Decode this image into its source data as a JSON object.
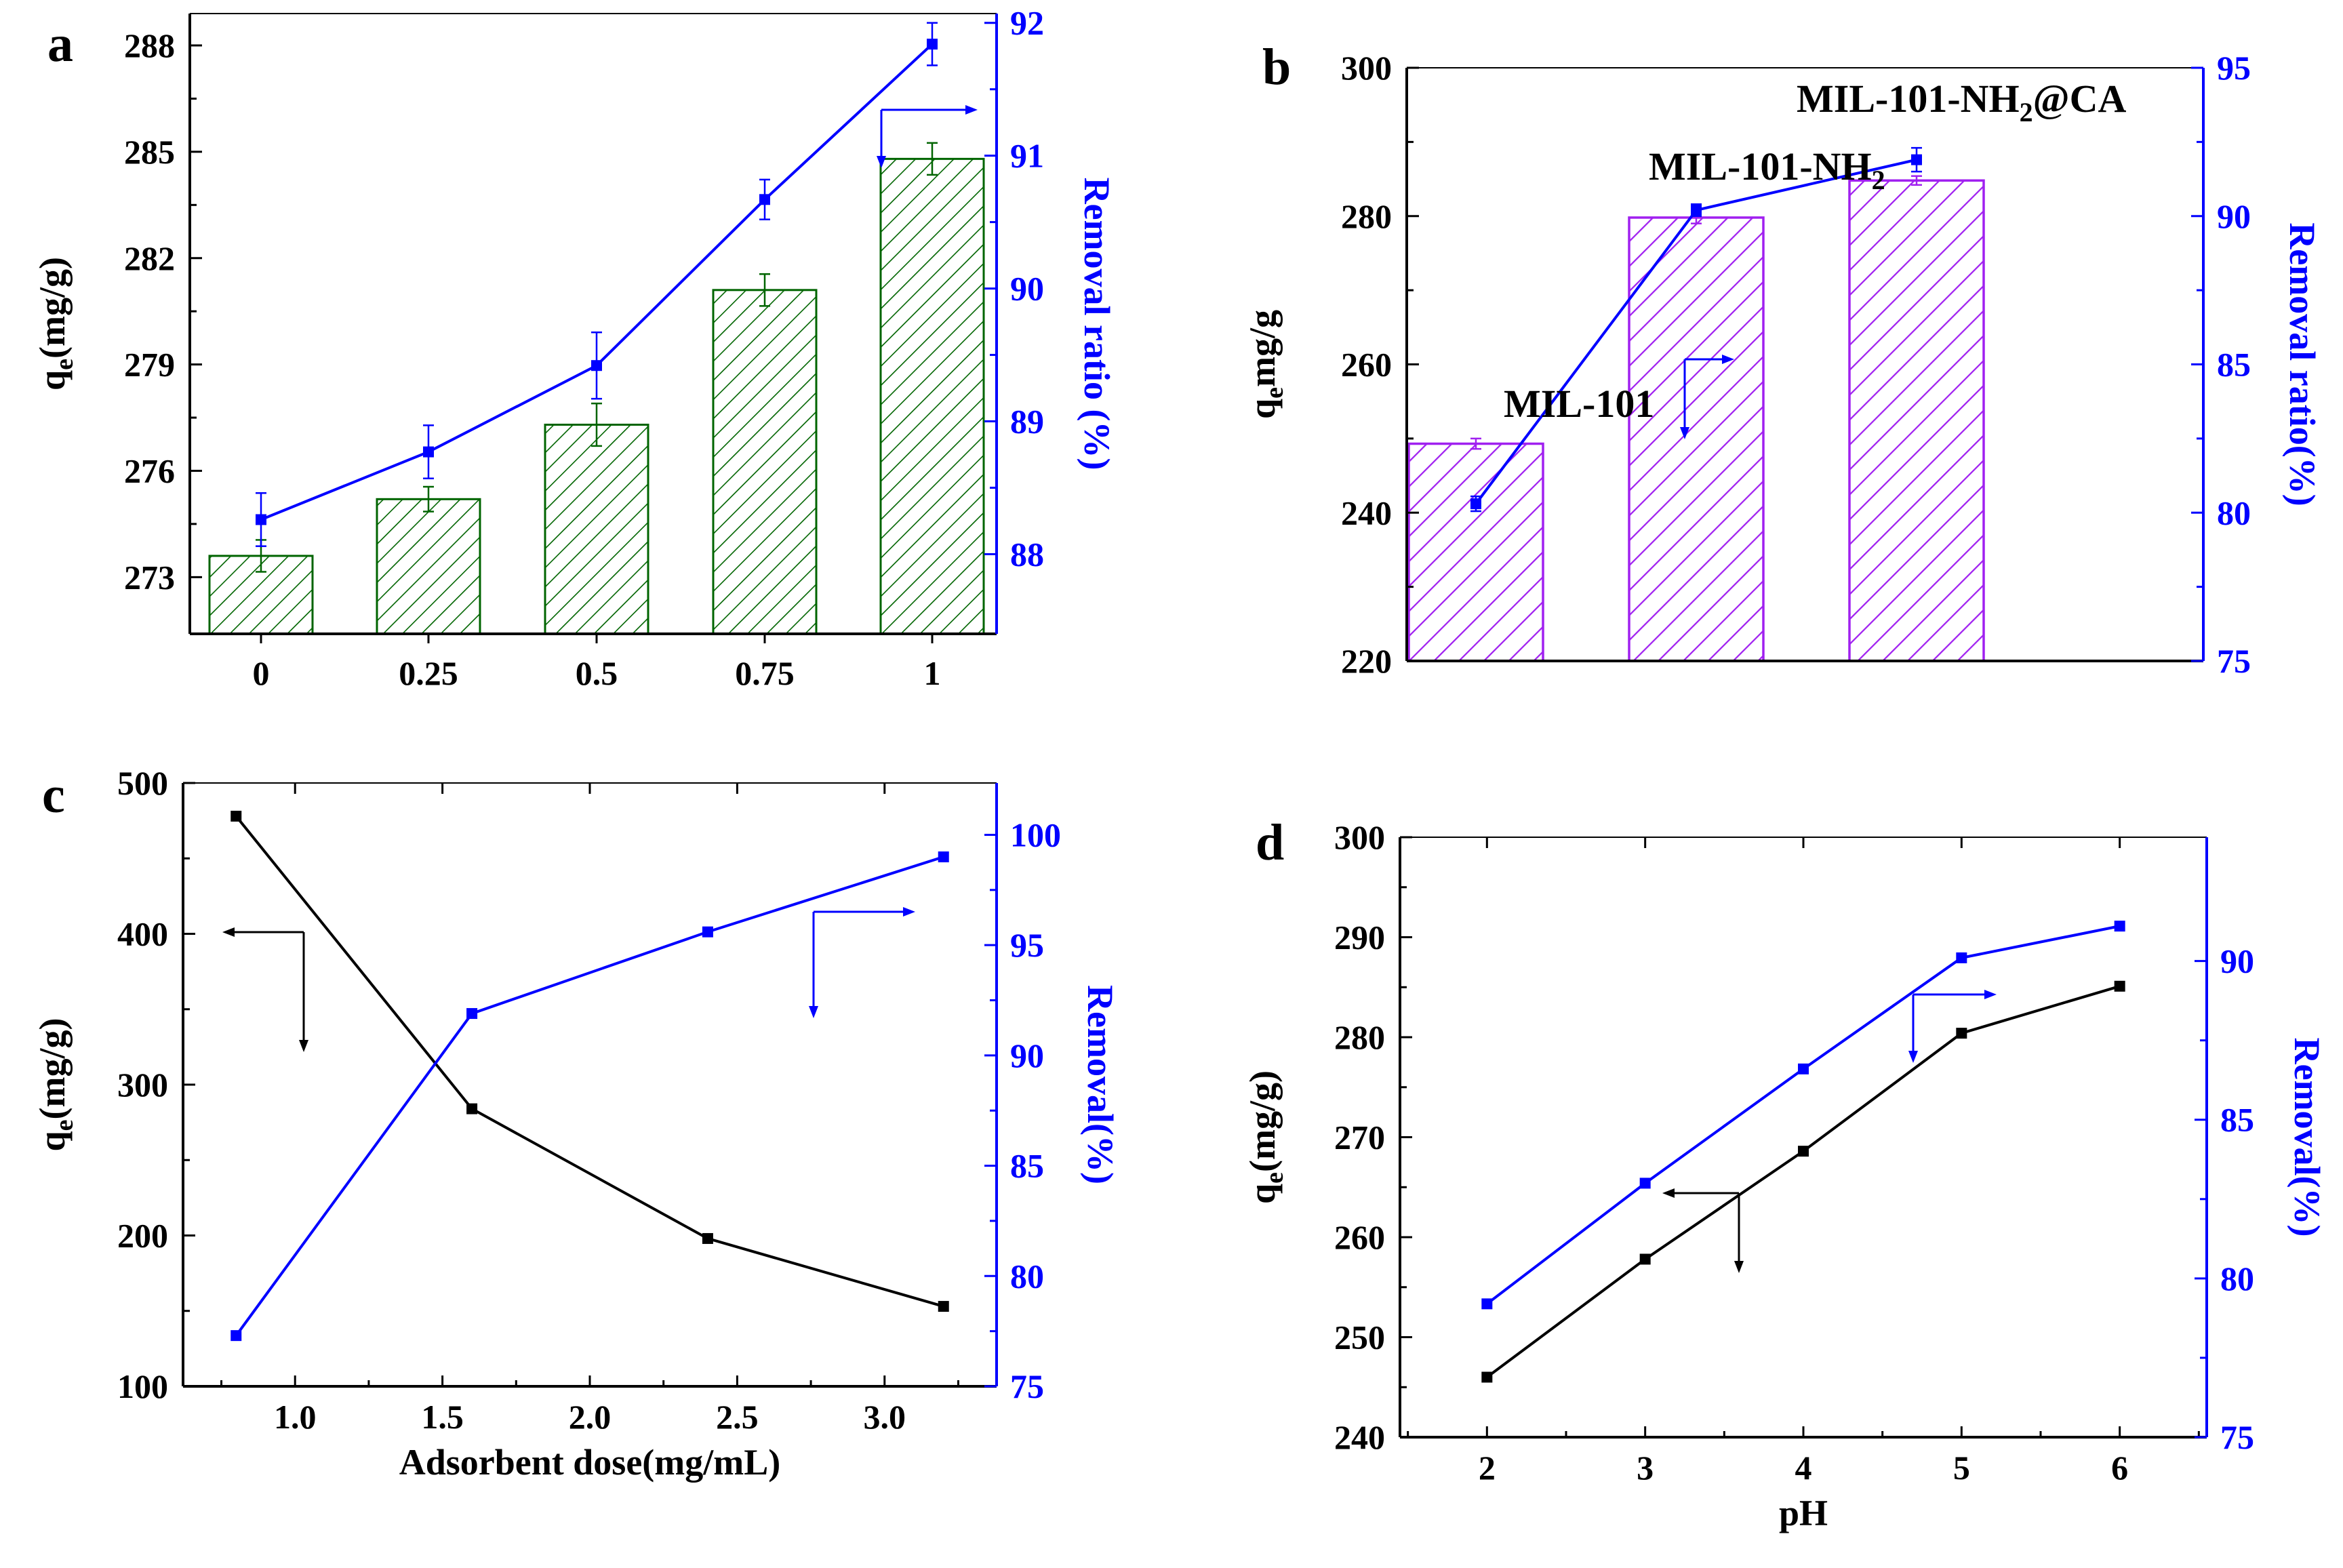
{
  "colors": {
    "black": "#000000",
    "blue": "#0000ff",
    "green": "#006400",
    "purple": "#a020f0"
  },
  "chart_data": [
    {
      "panel": "a",
      "type": "bar+line",
      "categories": [
        "0",
        "0.25",
        "0.5",
        "0.75",
        "1"
      ],
      "xlabel": "",
      "ylabel_main": "q",
      "ylabel_sub": "e",
      "ylabel_rest": "(mg/g)",
      "y2label": "Removal ratio (%)",
      "ylim": [
        271.4,
        288.9
      ],
      "y2lim": [
        87.4,
        92.07
      ],
      "yticks": [
        273,
        276,
        279,
        282,
        285,
        288
      ],
      "y2ticks": [
        88,
        89,
        90,
        91,
        92
      ],
      "series": [
        {
          "name": "q_e",
          "type": "bar",
          "axis": "left",
          "color": "#006400",
          "hatch": "green",
          "values": [
            273.6,
            275.2,
            277.3,
            281.1,
            284.8
          ],
          "errors": [
            0.45,
            0.35,
            0.6,
            0.45,
            0.45
          ]
        },
        {
          "name": "Removal ratio",
          "type": "line",
          "axis": "right",
          "color": "#0000ff",
          "values": [
            88.26,
            88.77,
            89.42,
            90.67,
            91.84
          ],
          "errors": [
            0.2,
            0.2,
            0.25,
            0.15,
            0.16
          ]
        }
      ]
    },
    {
      "panel": "b",
      "type": "bar+line",
      "categories": [
        "MIL-101",
        "MIL-101-NH2",
        "MIL-101-NH2@CA"
      ],
      "bar_labels": [
        {
          "main": "MIL-101",
          "sub": "",
          "tail": ""
        },
        {
          "main": "MIL-101-NH",
          "sub": "2",
          "tail": ""
        },
        {
          "main": "MIL-101-NH",
          "sub": "2",
          "tail": "@CA"
        }
      ],
      "ylabel_main": "q",
      "ylabel_sub": "e",
      "ylabel_rest": "mg/g",
      "y2label": "Removal ratio(%)",
      "ylim": [
        220,
        300
      ],
      "y2lim": [
        75,
        95
      ],
      "yticks": [
        220,
        240,
        260,
        280,
        300
      ],
      "y2ticks": [
        75,
        80,
        85,
        90,
        95
      ],
      "series": [
        {
          "name": "q_e",
          "type": "bar",
          "axis": "left",
          "color": "#a020f0",
          "hatch": "purple",
          "values": [
            249.3,
            279.8,
            284.8
          ],
          "errors": [
            0.7,
            0.8,
            0.6
          ]
        },
        {
          "name": "Removal ratio",
          "type": "line",
          "axis": "right",
          "color": "#0000ff",
          "values": [
            80.3,
            90.2,
            91.9
          ],
          "errors": [
            0.25,
            0.2,
            0.4
          ]
        }
      ]
    },
    {
      "panel": "c",
      "type": "line",
      "xlabel": "Adsorbent dose(mg/mL)",
      "ylabel_main": "q",
      "ylabel_sub": "e",
      "ylabel_rest": "(mg/g)",
      "y2label": "Removal(%)",
      "xlim": [
        0.62,
        3.38
      ],
      "ylim": [
        100,
        500
      ],
      "y2lim": [
        75,
        102.35
      ],
      "xticks": [
        1.0,
        1.5,
        2.0,
        2.5,
        3.0
      ],
      "xtick_labels": [
        "1.0",
        "1.5",
        "2.0",
        "2.5",
        "3.0"
      ],
      "yticks": [
        100,
        200,
        300,
        400,
        500
      ],
      "y2ticks": [
        75,
        80,
        85,
        90,
        95,
        100
      ],
      "x": [
        0.8,
        1.6,
        2.4,
        3.2
      ],
      "series": [
        {
          "name": "q_e",
          "axis": "left",
          "color": "#000000",
          "values": [
            478,
            284,
            198,
            153
          ]
        },
        {
          "name": "Removal",
          "axis": "right",
          "color": "#0000ff",
          "values": [
            77.3,
            91.9,
            95.6,
            99.0
          ]
        }
      ]
    },
    {
      "panel": "d",
      "type": "line",
      "xlabel": "pH",
      "ylabel_main": "q",
      "ylabel_sub": "e",
      "ylabel_rest": "(mg/g)",
      "y2label": "Removal(%)",
      "xlim": [
        1.45,
        6.55
      ],
      "ylim": [
        240,
        300
      ],
      "y2lim": [
        75,
        93.9
      ],
      "xticks": [
        2,
        3,
        4,
        5,
        6
      ],
      "xtick_labels": [
        "2",
        "3",
        "4",
        "5",
        "6"
      ],
      "yticks": [
        240,
        250,
        260,
        270,
        280,
        290,
        300
      ],
      "y2ticks": [
        75,
        80,
        85,
        90
      ],
      "x": [
        2,
        3,
        4,
        5,
        6
      ],
      "series": [
        {
          "name": "q_e",
          "axis": "left",
          "color": "#000000",
          "values": [
            246.0,
            257.8,
            268.6,
            280.4,
            285.1
          ]
        },
        {
          "name": "Removal",
          "axis": "right",
          "color": "#0000ff",
          "values": [
            79.2,
            83.0,
            86.6,
            90.1,
            91.1
          ]
        }
      ]
    }
  ]
}
